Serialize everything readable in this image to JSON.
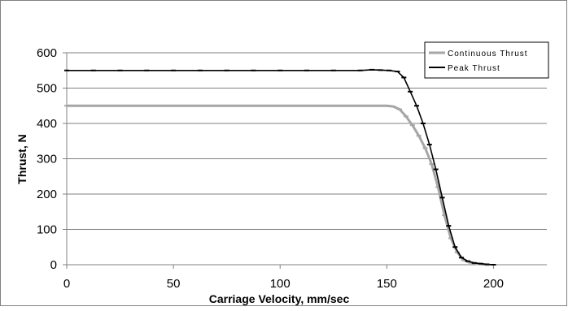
{
  "chart_data": {
    "type": "line",
    "xlabel": "Carriage Velocity, mm/sec",
    "ylabel": "Thrust, N",
    "xlim": [
      0,
      225
    ],
    "ylim": [
      0,
      600
    ],
    "x_ticks": [
      0,
      50,
      100,
      150,
      200
    ],
    "y_ticks": [
      0,
      100,
      200,
      300,
      400,
      500,
      600
    ],
    "grid": "horizontal",
    "legend_position": "top-right",
    "series": [
      {
        "name": "Continuous Thrust",
        "color": "#a6a6a6",
        "marker": "dash",
        "x": [
          0,
          12.5,
          25,
          37.5,
          50,
          62.5,
          75,
          87.5,
          100,
          112.5,
          125,
          137.5,
          150,
          153,
          156,
          159,
          162,
          165,
          168,
          171,
          174,
          177,
          180,
          183,
          186,
          189,
          192,
          195,
          198
        ],
        "y": [
          450,
          450,
          450,
          450,
          450,
          450,
          450,
          450,
          450,
          450,
          450,
          450,
          450,
          448,
          440,
          420,
          395,
          365,
          330,
          285,
          220,
          140,
          75,
          35,
          13,
          6,
          3,
          1,
          0
        ]
      },
      {
        "name": "Peak Thrust",
        "color": "#000000",
        "marker": "dash",
        "x": [
          0,
          12.5,
          25,
          37.5,
          50,
          62.5,
          75,
          87.5,
          100,
          112.5,
          125,
          137.5,
          143,
          147,
          151,
          155,
          158,
          161,
          164,
          167,
          170,
          173,
          176,
          179,
          182,
          185,
          188,
          191,
          194,
          197,
          200
        ],
        "y": [
          550,
          550,
          550,
          550,
          550,
          550,
          550,
          550,
          550,
          550,
          550,
          550,
          552,
          551,
          550,
          547,
          530,
          490,
          450,
          400,
          340,
          270,
          190,
          110,
          50,
          20,
          10,
          5,
          3,
          1,
          0
        ]
      }
    ]
  }
}
